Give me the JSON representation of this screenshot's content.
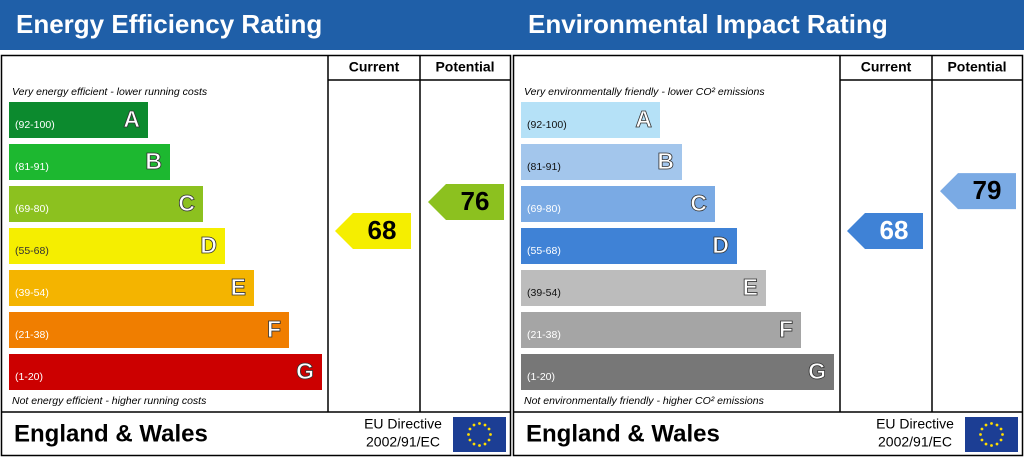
{
  "panels": [
    {
      "title": "Energy Efficiency Rating",
      "columns": [
        "Current",
        "Potential"
      ],
      "top_note": "Very energy efficient - lower running costs",
      "bottom_note": "Not energy efficient - higher running costs",
      "bands": [
        {
          "range": "(92-100)",
          "letter": "A",
          "color": "#0c8a2e",
          "label_color": "#ffffff"
        },
        {
          "range": "(81-91)",
          "letter": "B",
          "color": "#1db830",
          "label_color": "#ffffff"
        },
        {
          "range": "(69-80)",
          "letter": "C",
          "color": "#8cc11f",
          "label_color": "#ffffff"
        },
        {
          "range": "(55-68)",
          "letter": "D",
          "color": "#f5ee00",
          "label_color": "#333333"
        },
        {
          "range": "(39-54)",
          "letter": "E",
          "color": "#f4b400",
          "label_color": "#ffffff"
        },
        {
          "range": "(21-38)",
          "letter": "F",
          "color": "#f07e00",
          "label_color": "#ffffff"
        },
        {
          "range": "(1-20)",
          "letter": "G",
          "color": "#cc0000",
          "label_color": "#ffffff"
        }
      ],
      "current": {
        "value": 68,
        "color": "#f5ee00",
        "text_color": "#000000"
      },
      "potential": {
        "value": 76,
        "color": "#8cc11f",
        "text_color": "#000000"
      },
      "footer": {
        "region": "England & Wales",
        "directive": [
          "EU Directive",
          "2002/91/EC"
        ]
      }
    },
    {
      "title": "Environmental Impact Rating",
      "columns": [
        "Current",
        "Potential"
      ],
      "top_note": "Very environmentally friendly - lower CO² emissions",
      "bottom_note": "Not environmentally friendly - higher CO² emissions",
      "bands": [
        {
          "range": "(92-100)",
          "letter": "A",
          "color": "#b5e1f7",
          "label_color": "#111111"
        },
        {
          "range": "(81-91)",
          "letter": "B",
          "color": "#a3c6ec",
          "label_color": "#111111"
        },
        {
          "range": "(69-80)",
          "letter": "C",
          "color": "#7aaae4",
          "label_color": "#ffffff"
        },
        {
          "range": "(55-68)",
          "letter": "D",
          "color": "#3f82d6",
          "label_color": "#ffffff"
        },
        {
          "range": "(39-54)",
          "letter": "E",
          "color": "#bcbcbc",
          "label_color": "#111111"
        },
        {
          "range": "(21-38)",
          "letter": "F",
          "color": "#a5a5a5",
          "label_color": "#ffffff"
        },
        {
          "range": "(1-20)",
          "letter": "G",
          "color": "#777777",
          "label_color": "#ffffff"
        }
      ],
      "current": {
        "value": 68,
        "color": "#3f82d6",
        "text_color": "#ffffff"
      },
      "potential": {
        "value": 79,
        "color": "#7aaae4",
        "text_color": "#000000"
      },
      "footer": {
        "region": "England & Wales",
        "directive": [
          "EU Directive",
          "2002/91/EC"
        ]
      }
    }
  ]
}
